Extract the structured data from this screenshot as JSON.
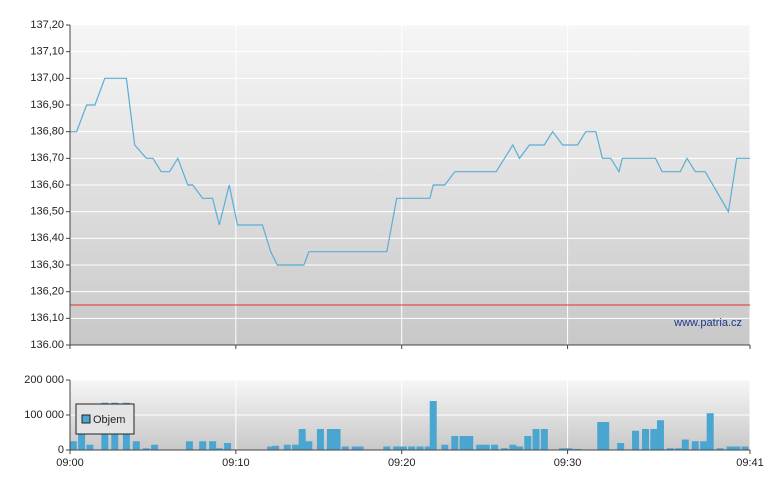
{
  "chart_data": [
    {
      "type": "line",
      "color": "#5aaed6",
      "reference": 136.15,
      "reference_color": "#e03030",
      "watermark": "www.patria.cz",
      "x": [
        0,
        0.4,
        1.0,
        1.5,
        2.1,
        3.4,
        3.9,
        4.6,
        5.0,
        5.5,
        6.0,
        6.5,
        7.1,
        7.4,
        8.0,
        8.6,
        9.0,
        9.6,
        10.1,
        11.6,
        12.1,
        12.5,
        14.1,
        14.4,
        19.1,
        19.7,
        21.7,
        21.9,
        22.6,
        23.2,
        25.7,
        26.7,
        27.1,
        27.7,
        28.6,
        29.1,
        29.7,
        30.6,
        31.1,
        31.7,
        32.1,
        32.6,
        33.1,
        33.3,
        35.3,
        35.7,
        36.8,
        37.2,
        37.7,
        38.3,
        39.7,
        40.2,
        41
      ],
      "values": [
        136.8,
        136.8,
        136.9,
        136.9,
        137.0,
        137.0,
        136.75,
        136.7,
        136.7,
        136.65,
        136.65,
        136.7,
        136.6,
        136.6,
        136.55,
        136.55,
        136.45,
        136.6,
        136.45,
        136.45,
        136.35,
        136.3,
        136.3,
        136.35,
        136.35,
        136.55,
        136.55,
        136.6,
        136.6,
        136.65,
        136.65,
        136.75,
        136.7,
        136.75,
        136.75,
        136.8,
        136.75,
        136.75,
        136.8,
        136.8,
        136.7,
        136.7,
        136.65,
        136.7,
        136.7,
        136.65,
        136.65,
        136.7,
        136.65,
        136.65,
        136.5,
        136.7,
        136.7
      ],
      "xlim": [
        0,
        41
      ],
      "xgrid": [
        0,
        10,
        20,
        30,
        41
      ],
      "ylim": [
        136.0,
        137.2
      ],
      "yticks": [
        {
          "value": 136.0,
          "label": "136.00"
        },
        {
          "value": 136.1,
          "label": "136,10"
        },
        {
          "value": 136.2,
          "label": "136,20"
        },
        {
          "value": 136.3,
          "label": "136,30"
        },
        {
          "value": 136.4,
          "label": "136,40"
        },
        {
          "value": 136.5,
          "label": "136,50"
        },
        {
          "value": 136.6,
          "label": "136,60"
        },
        {
          "value": 136.7,
          "label": "136,70"
        },
        {
          "value": 136.8,
          "label": "136,80"
        },
        {
          "value": 136.9,
          "label": "136,90"
        },
        {
          "value": 137.0,
          "label": "137,00"
        },
        {
          "value": 137.1,
          "label": "137,10"
        },
        {
          "value": 137.2,
          "label": "137,20"
        }
      ]
    },
    {
      "type": "bar",
      "x": [
        0.2,
        0.7,
        1.2,
        2.1,
        2.7,
        3.4,
        4.0,
        4.6,
        5.1,
        7.2,
        8.0,
        8.6,
        9.0,
        9.5,
        12.1,
        12.4,
        13.1,
        13.6,
        14.0,
        14.4,
        15.1,
        15.7,
        16.1,
        16.6,
        17.2,
        17.5,
        19.1,
        19.7,
        20.1,
        20.6,
        21.1,
        21.6,
        21.9,
        22.6,
        23.2,
        23.7,
        24.1,
        24.7,
        25.1,
        25.6,
        26.2,
        26.7,
        27.1,
        27.6,
        28.1,
        28.6,
        29.7,
        30.1,
        30.6,
        32.0,
        32.3,
        33.2,
        34.1,
        34.7,
        35.2,
        35.6,
        36.2,
        36.7,
        37.1,
        37.7,
        38.2,
        38.6,
        39.2,
        39.8,
        40.2,
        40.7
      ],
      "series": [
        {
          "name": "Objem",
          "color": "#4aa6d0",
          "values": [
            25000,
            45000,
            15000,
            135000,
            135000,
            135000,
            25000,
            5000,
            15000,
            25000,
            25000,
            25000,
            5000,
            20000,
            10000,
            12000,
            15000,
            15000,
            60000,
            25000,
            60000,
            60000,
            60000,
            10000,
            10000,
            10000,
            10000,
            10000,
            10000,
            10000,
            10000,
            10000,
            140000,
            15000,
            40000,
            40000,
            40000,
            15000,
            15000,
            15000,
            5000,
            15000,
            10000,
            40000,
            60000,
            60000,
            5000,
            5000,
            3000,
            80000,
            80000,
            20000,
            55000,
            60000,
            60000,
            85000,
            5000,
            5000,
            30000,
            25000,
            25000,
            105000,
            5000,
            10000,
            10000,
            10000
          ]
        }
      ],
      "xlim": [
        0,
        41
      ],
      "xticks": [
        {
          "value": 0,
          "label": "09:00"
        },
        {
          "value": 10,
          "label": "09:10"
        },
        {
          "value": 20,
          "label": "09:20"
        },
        {
          "value": 30,
          "label": "09:30"
        },
        {
          "value": 41,
          "label": "09:41"
        }
      ],
      "ylim": [
        0,
        200000
      ],
      "yticks": [
        0,
        {
          "value": 100000,
          "label": "100 000"
        },
        {
          "value": 200000,
          "label": "200 000"
        }
      ]
    }
  ]
}
